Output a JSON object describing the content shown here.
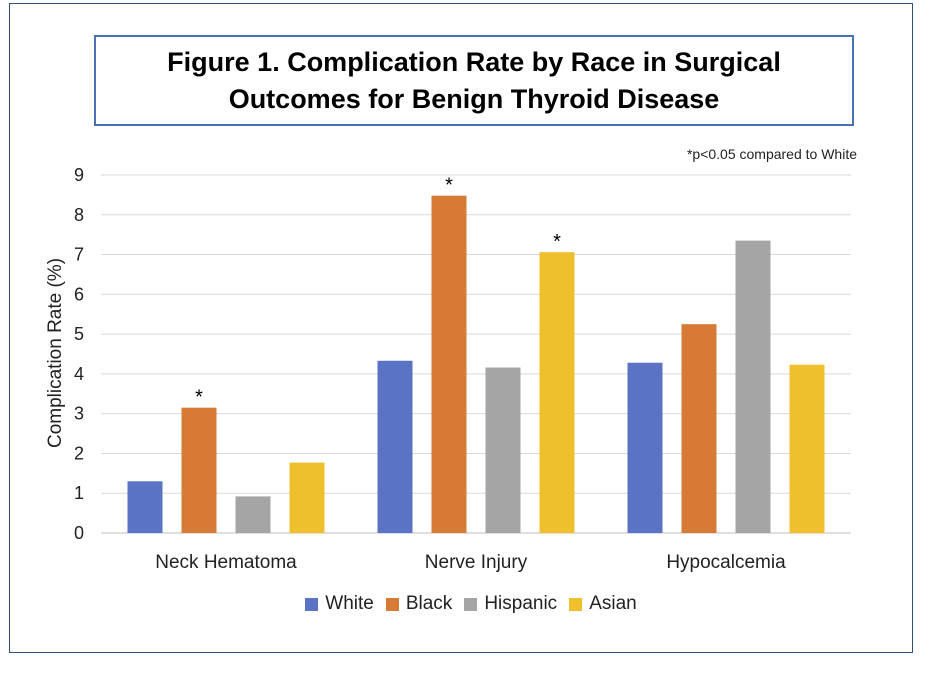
{
  "title": "Figure 1. Complication Rate by Race in Surgical\nOutcomes for Benign Thyroid Disease",
  "note": "*p<0.05 compared to White",
  "colors": {
    "White": "#5a73c4",
    "Black": "#d67a36",
    "Hispanic": "#a5a5a5",
    "Asian": "#efc02e"
  },
  "chart_data": {
    "type": "bar",
    "categories": [
      "Neck Hematoma",
      "Nerve Injury",
      "Hypocalcemia"
    ],
    "series": [
      {
        "name": "White",
        "values": [
          1.3,
          4.33,
          4.28
        ],
        "significant": [
          false,
          false,
          false
        ]
      },
      {
        "name": "Black",
        "values": [
          3.15,
          8.48,
          5.25
        ],
        "significant": [
          true,
          true,
          false
        ]
      },
      {
        "name": "Hispanic",
        "values": [
          0.92,
          4.16,
          7.35
        ],
        "significant": [
          false,
          false,
          false
        ]
      },
      {
        "name": "Asian",
        "values": [
          1.77,
          7.06,
          4.23
        ],
        "significant": [
          false,
          true,
          false
        ]
      }
    ],
    "ylabel": "Complication Rate (%)",
    "xlabel": "",
    "ylim": [
      0,
      9
    ],
    "yticks": [
      "0",
      "1",
      "2",
      "3",
      "4",
      "5",
      "6",
      "7",
      "8",
      "9"
    ],
    "significance_marker": "*",
    "grid": true,
    "legend": "bottom"
  }
}
